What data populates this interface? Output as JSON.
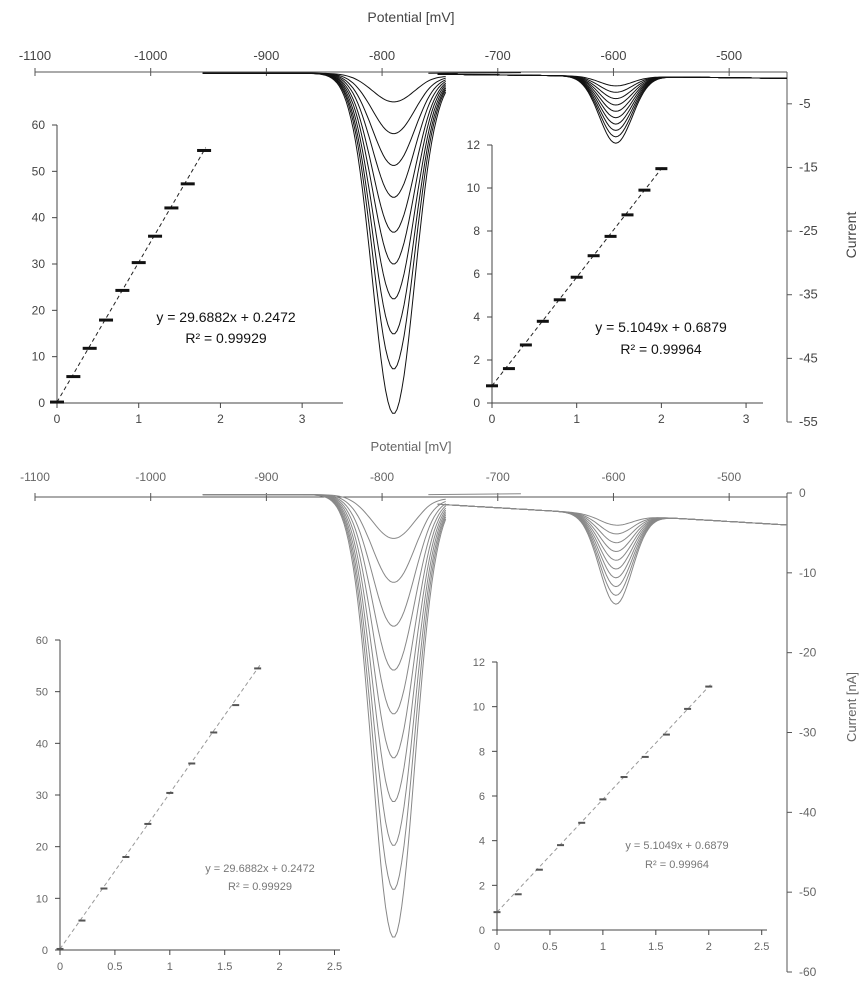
{
  "chart_data": [
    {
      "type": "line",
      "panel": "top",
      "style": "black",
      "xlabel": "Potential [mV]",
      "ylabel": "Current",
      "x_ticks": [
        -1100,
        -1000,
        -900,
        -800,
        -700,
        -600,
        -500
      ],
      "y_ticks": [
        -5,
        -15,
        -25,
        -35,
        -45,
        -55
      ],
      "xlim": [
        -1100,
        -450
      ],
      "ylim": [
        -55,
        0
      ],
      "peaks": [
        {
          "center": -790,
          "depths": [
            4.5,
            9.5,
            14.5,
            19.5,
            25,
            30,
            35.5,
            41,
            46.5,
            53.5
          ]
        },
        {
          "center": -598,
          "depths": [
            1.5,
            2.5,
            3.5,
            4.5,
            5.5,
            6.5,
            7.5,
            8.5,
            9.5,
            10.5
          ]
        }
      ],
      "insets": [
        {
          "x_ticks": [
            "0",
            "1",
            "2",
            "3"
          ],
          "y_ticks": [
            "0",
            "10",
            "20",
            "30",
            "40",
            "50",
            "60"
          ],
          "x": [
            0,
            0.2,
            0.4,
            0.6,
            0.8,
            1.0,
            1.2,
            1.4,
            1.6,
            1.8
          ],
          "y": [
            0.2,
            5.7,
            11.8,
            17.9,
            24.3,
            30.3,
            36.0,
            42.1,
            47.3,
            54.5
          ],
          "equation": "y = 29.6882x + 0.2472",
          "r2": "R² = 0.99929"
        },
        {
          "x_ticks": [
            "0",
            "1",
            "2",
            "3"
          ],
          "y_ticks": [
            "0",
            "2",
            "4",
            "6",
            "8",
            "10",
            "12"
          ],
          "x": [
            0,
            0.2,
            0.4,
            0.6,
            0.8,
            1.0,
            1.2,
            1.4,
            1.6,
            1.8,
            2.0
          ],
          "y": [
            0.8,
            1.6,
            2.7,
            3.8,
            4.8,
            5.85,
            6.85,
            7.75,
            8.75,
            9.9,
            10.9
          ],
          "equation": "y = 5.1049x + 0.6879",
          "r2": "R² = 0.99964"
        }
      ]
    },
    {
      "type": "line",
      "panel": "bottom",
      "style": "gray",
      "xlabel": "Potential [mV]",
      "ylabel": "Current [nA]",
      "x_ticks": [
        -1100,
        -1000,
        -900,
        -800,
        -700,
        -600,
        -500
      ],
      "y_ticks": [
        0,
        -10,
        -20,
        -30,
        -40,
        -50,
        -60
      ],
      "xlim": [
        -1100,
        -450
      ],
      "ylim": [
        -60,
        0
      ],
      "peaks": [
        {
          "center": -790,
          "depths": [
            5.5,
            11,
            16.5,
            22,
            27.5,
            33,
            38.5,
            44,
            49.5,
            55.5
          ]
        },
        {
          "center": -598,
          "depths": [
            1.3,
            2.4,
            3.5,
            4.6,
            5.7,
            6.8,
            7.9,
            9.0,
            10.1,
            11.2
          ]
        }
      ],
      "insets": [
        {
          "x_ticks": [
            "0",
            "0.5",
            "1",
            "1.5",
            "2",
            "2.5"
          ],
          "y_ticks": [
            "0",
            "10",
            "20",
            "30",
            "40",
            "50",
            "60"
          ],
          "x": [
            0,
            0.2,
            0.4,
            0.6,
            0.8,
            1.0,
            1.2,
            1.4,
            1.6,
            1.8
          ],
          "y": [
            0.2,
            5.7,
            11.9,
            18.0,
            24.4,
            30.4,
            36.1,
            42.1,
            47.4,
            54.5
          ],
          "equation": "y = 29.6882x + 0.2472",
          "r2": "R² = 0.99929"
        },
        {
          "x_ticks": [
            "0",
            "0.5",
            "1",
            "1.5",
            "2",
            "2.5"
          ],
          "y_ticks": [
            "0",
            "2",
            "4",
            "6",
            "8",
            "10",
            "12"
          ],
          "x": [
            0,
            0.2,
            0.4,
            0.6,
            0.8,
            1.0,
            1.2,
            1.4,
            1.6,
            1.8,
            2.0
          ],
          "y": [
            0.8,
            1.6,
            2.7,
            3.8,
            4.8,
            5.85,
            6.85,
            7.75,
            8.75,
            9.9,
            10.9
          ],
          "equation": "y = 5.1049x + 0.6879",
          "r2": "R² = 0.99964"
        }
      ]
    }
  ]
}
